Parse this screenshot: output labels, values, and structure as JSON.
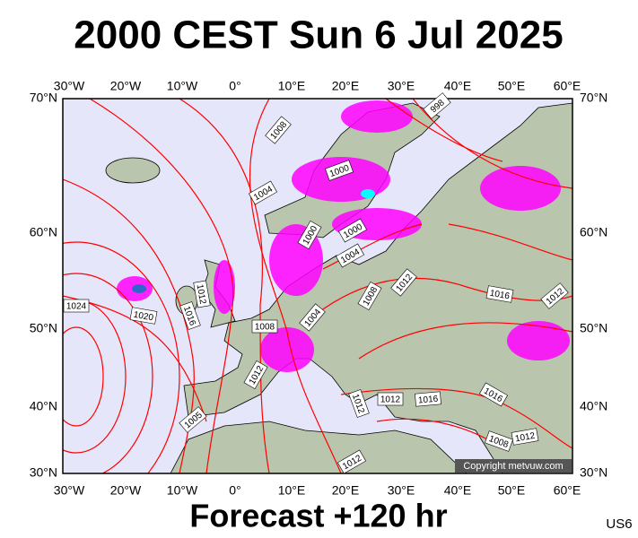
{
  "header": {
    "title": "2000 CEST Sun 6 Jul 2025"
  },
  "map": {
    "lon_labels": [
      "30°W",
      "20°W",
      "10°W",
      "0°",
      "10°E",
      "20°E",
      "30°E",
      "40°E",
      "50°E",
      "60°E"
    ],
    "lat_labels": [
      "70°N",
      "60°N",
      "50°N",
      "40°N",
      "30°N"
    ],
    "isobar_labels": [
      "1008",
      "1000",
      "1004",
      "1000",
      "1000",
      "1004",
      "998",
      "1012",
      "1008",
      "1016",
      "1012",
      "1012",
      "1016",
      "1020",
      "1024",
      "1008",
      "1004",
      "1012",
      "1012",
      "1012",
      "1016",
      "1016",
      "1008",
      "1012",
      "1005",
      "1012"
    ],
    "copyright": "Copyright metvuw.com"
  },
  "footer": {
    "caption": "Forecast +120 hr",
    "code": "US6"
  }
}
